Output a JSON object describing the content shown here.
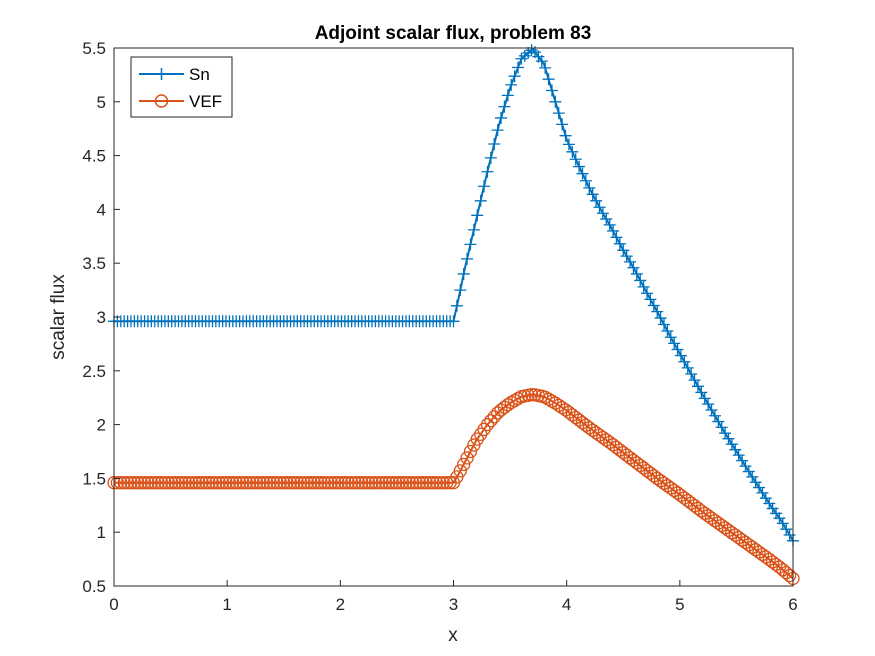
{
  "chart_data": {
    "type": "line",
    "title": "Adjoint scalar flux, problem 83",
    "xlabel": "x",
    "ylabel": "scalar flux",
    "xlim": [
      0,
      6
    ],
    "ylim": [
      0.5,
      5.5
    ],
    "xticks": [
      "0",
      "1",
      "2",
      "3",
      "4",
      "5",
      "6"
    ],
    "yticks": [
      "0.5",
      "1",
      "1.5",
      "2",
      "2.5",
      "3",
      "3.5",
      "4",
      "4.5",
      "5",
      "5.5"
    ],
    "grid": false,
    "legend_position": "top-left",
    "series": [
      {
        "name": "Sn",
        "color": "#0072BD",
        "marker": "plus",
        "points": [
          [
            0,
            2.96
          ],
          [
            0.5,
            2.96
          ],
          [
            1.0,
            2.96
          ],
          [
            1.5,
            2.96
          ],
          [
            2.0,
            2.96
          ],
          [
            2.5,
            2.96
          ],
          [
            3.0,
            2.96
          ],
          [
            3.05,
            3.2
          ],
          [
            3.1,
            3.45
          ],
          [
            3.2,
            3.9
          ],
          [
            3.3,
            4.35
          ],
          [
            3.4,
            4.78
          ],
          [
            3.5,
            5.13
          ],
          [
            3.6,
            5.4
          ],
          [
            3.7,
            5.49
          ],
          [
            3.8,
            5.35
          ],
          [
            3.9,
            5.0
          ],
          [
            4.0,
            4.65
          ],
          [
            4.1,
            4.42
          ],
          [
            4.2,
            4.2
          ],
          [
            4.3,
            4.0
          ],
          [
            4.4,
            3.82
          ],
          [
            4.5,
            3.62
          ],
          [
            4.6,
            3.44
          ],
          [
            4.7,
            3.24
          ],
          [
            4.8,
            3.05
          ],
          [
            4.9,
            2.85
          ],
          [
            5.0,
            2.66
          ],
          [
            5.2,
            2.28
          ],
          [
            5.4,
            1.92
          ],
          [
            5.6,
            1.58
          ],
          [
            5.8,
            1.25
          ],
          [
            5.9,
            1.1
          ],
          [
            6.0,
            0.92
          ]
        ]
      },
      {
        "name": "VEF",
        "color": "#D95319",
        "marker": "circle",
        "points": [
          [
            0,
            1.46
          ],
          [
            0.5,
            1.46
          ],
          [
            1.0,
            1.46
          ],
          [
            1.5,
            1.46
          ],
          [
            2.0,
            1.46
          ],
          [
            2.5,
            1.46
          ],
          [
            3.0,
            1.46
          ],
          [
            3.05,
            1.55
          ],
          [
            3.1,
            1.65
          ],
          [
            3.2,
            1.85
          ],
          [
            3.3,
            2.0
          ],
          [
            3.4,
            2.12
          ],
          [
            3.5,
            2.2
          ],
          [
            3.6,
            2.26
          ],
          [
            3.7,
            2.28
          ],
          [
            3.8,
            2.26
          ],
          [
            3.9,
            2.2
          ],
          [
            4.0,
            2.13
          ],
          [
            4.2,
            1.97
          ],
          [
            4.4,
            1.82
          ],
          [
            4.6,
            1.66
          ],
          [
            4.8,
            1.5
          ],
          [
            5.0,
            1.35
          ],
          [
            5.2,
            1.19
          ],
          [
            5.4,
            1.04
          ],
          [
            5.6,
            0.89
          ],
          [
            5.8,
            0.74
          ],
          [
            5.9,
            0.66
          ],
          [
            6.0,
            0.57
          ]
        ]
      }
    ]
  }
}
